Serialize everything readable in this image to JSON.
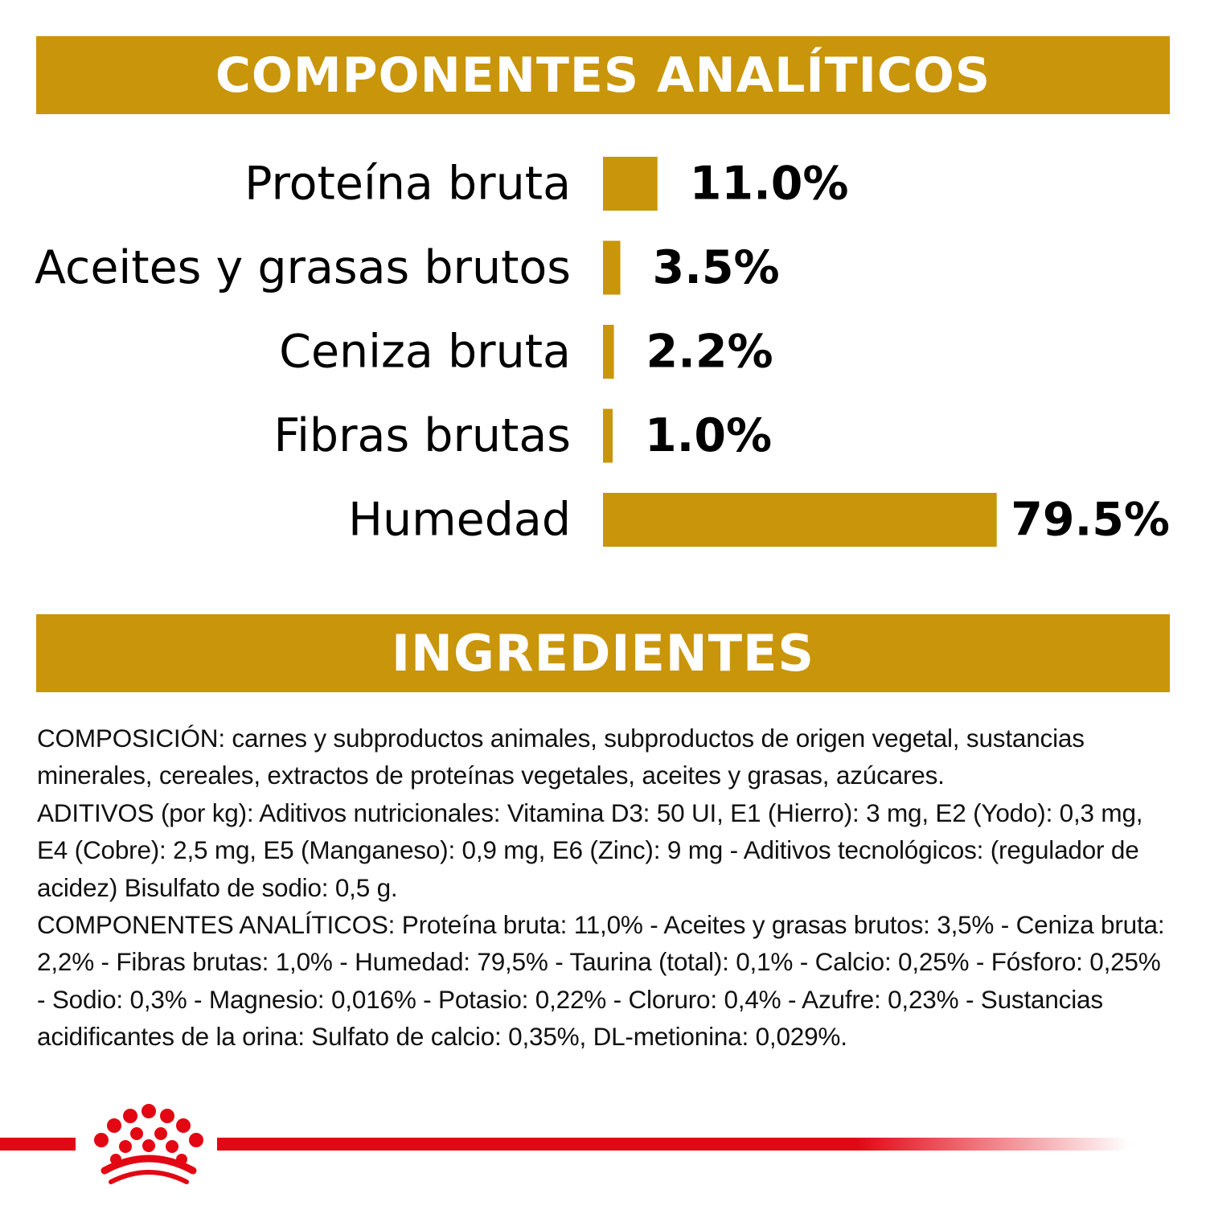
{
  "colors": {
    "accent": "#C9950A",
    "brand_red": "#E30613",
    "text": "#000000"
  },
  "header_analytic": {
    "title": "COMPONENTES ANALÍTICOS"
  },
  "header_ingredients": {
    "title": "INGREDIENTES"
  },
  "chart_data": {
    "type": "bar",
    "orientation": "horizontal",
    "categories": [
      "Proteína bruta",
      "Aceites y grasas brutos",
      "Ceniza bruta",
      "Fibras brutas",
      "Humedad"
    ],
    "values": [
      11.0,
      3.5,
      2.2,
      1.0,
      79.5
    ],
    "value_labels": [
      "11.0%",
      "3.5%",
      "2.2%",
      "1.0%",
      "79.5%"
    ],
    "xlim": [
      0,
      100
    ],
    "grid": false,
    "legend": false
  },
  "ingredients": {
    "paragraphs": [
      "COMPOSICIÓN: carnes y subproductos animales, subproductos de origen vegetal, sustancias minerales, cereales, extractos de proteínas vegetales, aceites y grasas, azúcares.",
      "ADITIVOS (por kg): Aditivos nutricionales: Vitamina D3: 50 UI, E1 (Hierro): 3 mg, E2 (Yodo): 0,3 mg, E4 (Cobre): 2,5 mg, E5 (Manganeso): 0,9 mg, E6 (Zinc): 9 mg - Aditivos tecnológicos: (regulador de acidez) Bisulfato de sodio: 0,5 g.",
      "COMPONENTES ANALÍTICOS: Proteína bruta: 11,0% - Aceites y grasas brutos: 3,5% - Ceniza bruta: 2,2% - Fibras brutas: 1,0% - Humedad: 79,5% - Taurina (total): 0,1% - Calcio: 0,25% - Fósforo: 0,25% - Sodio: 0,3% - Magnesio: 0,016% - Potasio: 0,22% - Cloruro: 0,4% - Azufre: 0,23% - Sustancias acidificantes de la orina: Sulfato de calcio: 0,35%, DL-metionina: 0,029%."
    ]
  },
  "logo": {
    "icon": "royal-crown-logo-icon"
  }
}
